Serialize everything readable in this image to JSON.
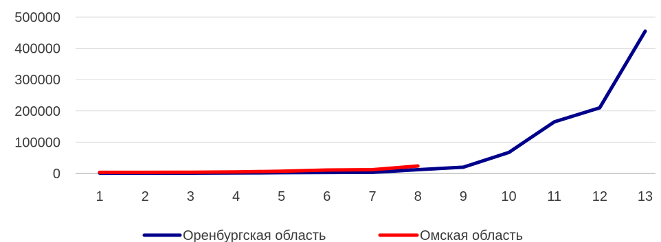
{
  "chart_data": {
    "type": "line",
    "title": "",
    "xlabel": "",
    "ylabel": "",
    "x": [
      1,
      2,
      3,
      4,
      5,
      6,
      7,
      8,
      9,
      10,
      11,
      12,
      13
    ],
    "x_tick_labels": [
      "1",
      "2",
      "3",
      "4",
      "5",
      "6",
      "7",
      "8",
      "9",
      "10",
      "11",
      "12",
      "13"
    ],
    "ylim": [
      0,
      500000
    ],
    "y_ticks": [
      0,
      100000,
      200000,
      300000,
      400000,
      500000
    ],
    "y_tick_labels": [
      "0",
      "100000",
      "200000",
      "300000",
      "400000",
      "500000"
    ],
    "grid": true,
    "legend_position": "bottom",
    "series": [
      {
        "name": "Оренбургская область",
        "color": "#00008B",
        "values": [
          1000,
          1000,
          1200,
          1500,
          2500,
          3000,
          3500,
          12000,
          20000,
          67000,
          165000,
          210000,
          455000
        ]
      },
      {
        "name": "Омская область",
        "color": "#FF0000",
        "values": [
          3500,
          3500,
          4000,
          5000,
          7000,
          11000,
          12000,
          24000,
          null,
          null,
          null,
          null,
          null
        ]
      }
    ]
  }
}
